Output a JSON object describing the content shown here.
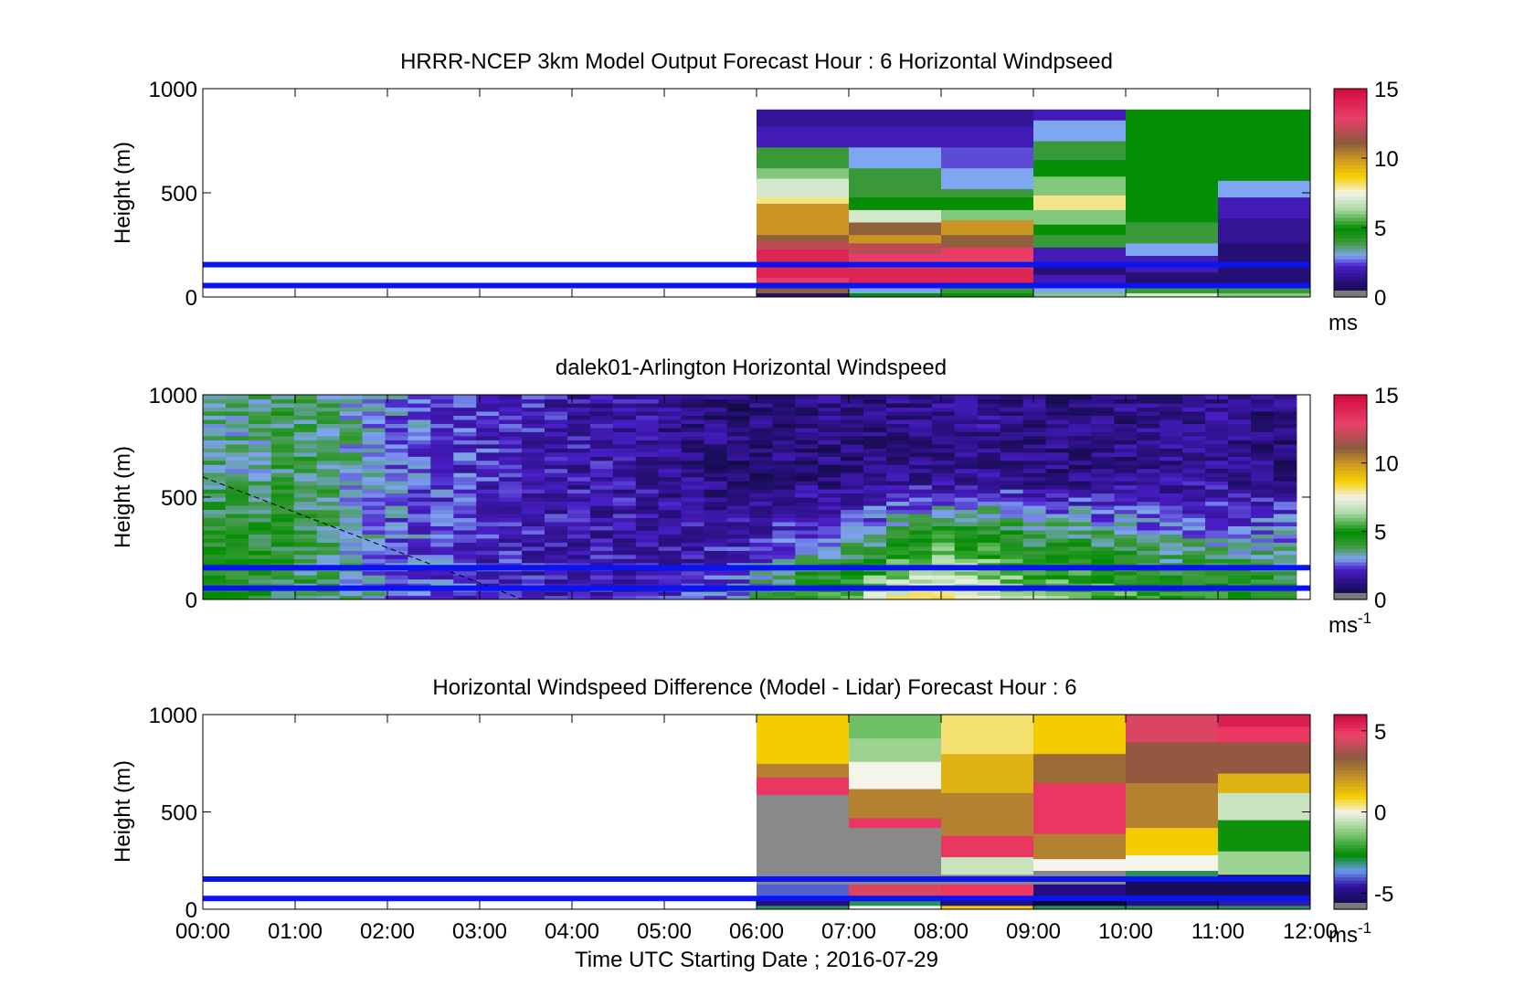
{
  "chart_data": [
    {
      "type": "heatmap",
      "title": "HRRR-NCEP 3km Model Output   Forecast Hour : 6 Horizontal Windpseed",
      "ylabel": "Height (m)",
      "xlabel": "",
      "ylim": [
        0,
        1000
      ],
      "yticks": [
        "0",
        "500",
        "1000"
      ],
      "xlim_hours": [
        0,
        12
      ],
      "colorbar": {
        "ticks": [
          "0",
          "5",
          "10",
          "15"
        ],
        "tick_values": [
          0,
          5,
          10,
          15
        ],
        "range": [
          0,
          15
        ],
        "unit": "ms",
        "unit_sup": ""
      },
      "reference_lines_m": [
        55,
        155
      ],
      "columns": [
        {
          "t0": 6,
          "t1": 7,
          "bands": [
            [
              0,
              20,
              1
            ],
            [
              20,
              60,
              11
            ],
            [
              60,
              95,
              13
            ],
            [
              95,
              115,
              14
            ],
            [
              115,
              150,
              14
            ],
            [
              150,
              230,
              14
            ],
            [
              230,
              270,
              12
            ],
            [
              270,
              300,
              11
            ],
            [
              300,
              380,
              10
            ],
            [
              380,
              450,
              10
            ],
            [
              450,
              480,
              8
            ],
            [
              480,
              570,
              7
            ],
            [
              570,
              620,
              6
            ],
            [
              620,
              720,
              4
            ],
            [
              720,
              820,
              2
            ],
            [
              820,
              900,
              1.5
            ]
          ]
        },
        {
          "t0": 7,
          "t1": 8,
          "bands": [
            [
              0,
              20,
              5
            ],
            [
              20,
              60,
              3
            ],
            [
              60,
              140,
              14
            ],
            [
              140,
              210,
              13
            ],
            [
              210,
              260,
              12
            ],
            [
              260,
              300,
              10
            ],
            [
              300,
              360,
              11
            ],
            [
              360,
              420,
              7
            ],
            [
              420,
              480,
              5
            ],
            [
              480,
              520,
              4
            ],
            [
              520,
              620,
              4
            ],
            [
              620,
              720,
              3
            ],
            [
              720,
              820,
              2
            ],
            [
              820,
              900,
              1.5
            ]
          ]
        },
        {
          "t0": 8,
          "t1": 9,
          "bands": [
            [
              0,
              20,
              5
            ],
            [
              20,
              60,
              4
            ],
            [
              60,
              140,
              14
            ],
            [
              140,
              240,
              13
            ],
            [
              240,
              300,
              11
            ],
            [
              300,
              370,
              10
            ],
            [
              370,
              420,
              6
            ],
            [
              420,
              480,
              5
            ],
            [
              480,
              520,
              4
            ],
            [
              520,
              620,
              3
            ],
            [
              620,
              720,
              2.5
            ],
            [
              720,
              820,
              2
            ],
            [
              820,
              900,
              1.5
            ]
          ]
        },
        {
          "t0": 9,
          "t1": 10,
          "bands": [
            [
              0,
              20,
              6
            ],
            [
              20,
              60,
              3
            ],
            [
              60,
              110,
              2
            ],
            [
              110,
              170,
              1
            ],
            [
              170,
              240,
              2
            ],
            [
              240,
              300,
              4
            ],
            [
              300,
              350,
              5
            ],
            [
              350,
              420,
              6
            ],
            [
              420,
              490,
              8
            ],
            [
              490,
              580,
              6
            ],
            [
              580,
              660,
              5
            ],
            [
              660,
              750,
              4
            ],
            [
              750,
              850,
              3
            ],
            [
              850,
              900,
              2
            ]
          ]
        },
        {
          "t0": 10,
          "t1": 11,
          "bands": [
            [
              0,
              20,
              7
            ],
            [
              20,
              60,
              4
            ],
            [
              60,
              120,
              1
            ],
            [
              120,
              200,
              2
            ],
            [
              200,
              260,
              3
            ],
            [
              260,
              360,
              4
            ],
            [
              360,
              500,
              5
            ],
            [
              500,
              620,
              5
            ],
            [
              620,
              900,
              5
            ]
          ]
        },
        {
          "t0": 11,
          "t1": 12,
          "bands": [
            [
              0,
              20,
              6
            ],
            [
              20,
              60,
              4
            ],
            [
              60,
              150,
              1
            ],
            [
              150,
              260,
              1
            ],
            [
              260,
              380,
              1.5
            ],
            [
              380,
              480,
              2
            ],
            [
              480,
              560,
              3
            ],
            [
              560,
              620,
              5
            ],
            [
              620,
              720,
              5
            ],
            [
              720,
              900,
              5
            ]
          ]
        }
      ]
    },
    {
      "type": "heatmap",
      "title": "dalek01-Arlington  Horizontal Windspeed",
      "ylabel": "Height (m)",
      "xlabel": "",
      "ylim": [
        0,
        1000
      ],
      "yticks": [
        "0",
        "500",
        "1000"
      ],
      "xlim_hours": [
        0,
        12
      ],
      "colorbar": {
        "ticks": [
          "0",
          "5",
          "10",
          "15"
        ],
        "tick_values": [
          0,
          5,
          10,
          15
        ],
        "range": [
          0,
          15
        ],
        "unit": "ms",
        "unit_sup": "-1"
      },
      "reference_lines_m": [
        55,
        155
      ],
      "data_extent_hours": [
        0,
        11.85
      ],
      "profile_hours": [
        0,
        0.5,
        1,
        1.5,
        2,
        2.5,
        3,
        3.5,
        4,
        4.5,
        5,
        5.5,
        6,
        6.5,
        7,
        7.5,
        8,
        8.5,
        9,
        9.5,
        10,
        10.5,
        11,
        11.5,
        11.85
      ],
      "speed_low_ms": [
        5,
        4.5,
        4,
        3.5,
        3,
        2.5,
        2.2,
        2,
        1.8,
        1.8,
        2,
        2.5,
        3.5,
        5,
        6,
        7.5,
        8,
        7,
        6,
        6,
        5.5,
        5,
        5,
        5,
        5
      ],
      "speed_mid_ms": [
        4.5,
        4.5,
        4,
        3.5,
        2.8,
        2.5,
        2.2,
        2,
        1.8,
        1.8,
        1.8,
        1.8,
        2,
        2.5,
        3,
        4,
        5,
        5,
        4,
        4,
        3.5,
        3,
        3,
        3,
        3
      ],
      "speed_high_ms": [
        3.5,
        3.5,
        4,
        3.5,
        2.8,
        2.5,
        2.2,
        2,
        1.8,
        1.8,
        1.5,
        1.2,
        1,
        1.2,
        1.2,
        1.3,
        1.4,
        1.5,
        1.2,
        1.2,
        1.3,
        1.5,
        1.5,
        1.2,
        1.2
      ]
    },
    {
      "type": "heatmap",
      "title": "Horizontal Windspeed Difference (Model - Lidar) Forecast Hour : 6",
      "ylabel": "Height (m)",
      "xlabel": "Time UTC  Starting Date ; 2016-07-29",
      "ylim": [
        0,
        1000
      ],
      "yticks": [
        "0",
        "500",
        "1000"
      ],
      "xlim_hours": [
        0,
        12
      ],
      "xticks": [
        "00:00",
        "01:00",
        "02:00",
        "03:00",
        "04:00",
        "05:00",
        "06:00",
        "07:00",
        "08:00",
        "09:00",
        "10:00",
        "11:00",
        "12:00"
      ],
      "colorbar": {
        "ticks": [
          "-5",
          "0",
          "5"
        ],
        "tick_values": [
          -5,
          0,
          5
        ],
        "range": [
          -6,
          6
        ],
        "unit": "ms",
        "unit_sup": "-1"
      },
      "reference_lines_m": [
        55,
        155
      ],
      "columns": [
        {
          "t0": 6,
          "t1": 7,
          "bands": [
            [
              0,
              20,
              -3
            ],
            [
              20,
              60,
              -5
            ],
            [
              60,
              130,
              -4
            ],
            [
              130,
              590,
              null
            ],
            [
              590,
              680,
              5
            ],
            [
              680,
              750,
              2.5
            ],
            [
              750,
              1000,
              1
            ]
          ]
        },
        {
          "t0": 7,
          "t1": 8,
          "bands": [
            [
              0,
              20,
              0
            ],
            [
              20,
              60,
              -3
            ],
            [
              60,
              130,
              4.5
            ],
            [
              130,
              420,
              null
            ],
            [
              420,
              470,
              5
            ],
            [
              470,
              620,
              2.5
            ],
            [
              620,
              760,
              0
            ],
            [
              760,
              880,
              -1
            ],
            [
              880,
              1000,
              -1.5
            ]
          ]
        },
        {
          "t0": 8,
          "t1": 9,
          "bands": [
            [
              0,
              20,
              1
            ],
            [
              20,
              60,
              -5
            ],
            [
              60,
              130,
              5
            ],
            [
              130,
              180,
              null
            ],
            [
              180,
              270,
              -0.5
            ],
            [
              270,
              380,
              5
            ],
            [
              380,
              600,
              2.5
            ],
            [
              600,
              800,
              1.5
            ],
            [
              800,
              1000,
              0.5
            ]
          ]
        },
        {
          "t0": 9,
          "t1": 10,
          "bands": [
            [
              0,
              20,
              -3
            ],
            [
              20,
              60,
              -6
            ],
            [
              60,
              130,
              -5
            ],
            [
              130,
              200,
              null
            ],
            [
              200,
              260,
              0
            ],
            [
              260,
              390,
              2.5
            ],
            [
              390,
              650,
              5
            ],
            [
              650,
              800,
              3
            ],
            [
              800,
              1000,
              1
            ]
          ]
        },
        {
          "t0": 10,
          "t1": 11,
          "bands": [
            [
              0,
              20,
              -3
            ],
            [
              20,
              60,
              -5
            ],
            [
              60,
              160,
              -5.5
            ],
            [
              160,
              200,
              -3
            ],
            [
              200,
              280,
              0
            ],
            [
              280,
              420,
              1
            ],
            [
              420,
              650,
              2.5
            ],
            [
              650,
              860,
              3.5
            ],
            [
              860,
              1000,
              4.5
            ]
          ]
        },
        {
          "t0": 11,
          "t1": 12,
          "bands": [
            [
              0,
              20,
              -3
            ],
            [
              20,
              60,
              -4.5
            ],
            [
              60,
              180,
              -5.5
            ],
            [
              180,
              300,
              -1
            ],
            [
              300,
              460,
              -2.5
            ],
            [
              460,
              600,
              -0.5
            ],
            [
              600,
              700,
              1.5
            ],
            [
              700,
              860,
              3.5
            ],
            [
              860,
              940,
              5
            ],
            [
              940,
              1000,
              5.5
            ]
          ]
        }
      ]
    }
  ]
}
